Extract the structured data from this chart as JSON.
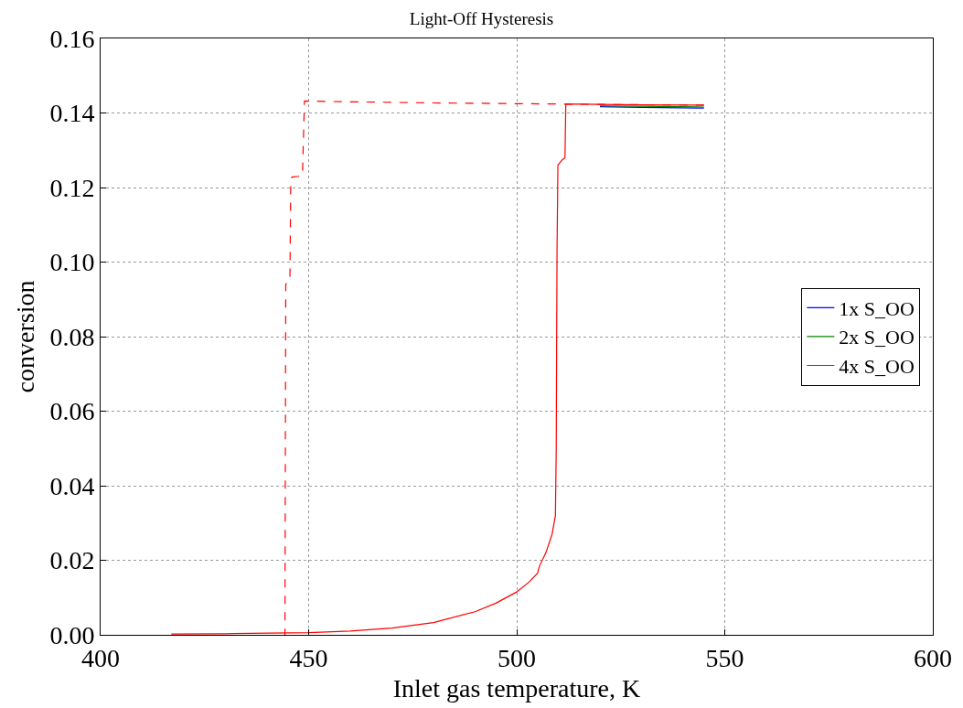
{
  "chart_data": {
    "type": "line",
    "title": "Light-Off Hysteresis",
    "xlabel": "Inlet gas temperature, K",
    "ylabel": "conversion",
    "xlim": [
      400,
      600
    ],
    "xticks": [
      400,
      450,
      500,
      550,
      600
    ],
    "ylim": [
      0,
      0.16
    ],
    "yticks": [
      {
        "value": 0,
        "label": "0.00"
      },
      {
        "value": 0.02,
        "label": "0.02"
      },
      {
        "value": 0.04,
        "label": "0.04"
      },
      {
        "value": 0.06,
        "label": "0.06"
      },
      {
        "value": 0.08,
        "label": "0.08"
      },
      {
        "value": 0.1,
        "label": "0.10"
      },
      {
        "value": 0.12,
        "label": "0.12"
      },
      {
        "value": 0.14,
        "label": "0.14"
      },
      {
        "value": 0.16,
        "label": "0.16"
      }
    ],
    "grid": true,
    "legend": "right",
    "marker": "none",
    "series": [
      {
        "name": "1x S_OO",
        "color": "#0000ff",
        "line_style": "solid",
        "x": [
          520,
          530,
          545
        ],
        "values": [
          0.1417,
          0.1415,
          0.1413
        ]
      },
      {
        "name": "2x S_OO",
        "color": "#008000",
        "line_style": "solid",
        "x": [
          520,
          530,
          545
        ],
        "values": [
          0.1419,
          0.1418,
          0.1416
        ]
      },
      {
        "name": "4x S_OO",
        "color": "#ff0000",
        "line_style": "solid",
        "x": [
          417,
          430,
          450,
          460,
          470,
          480,
          490,
          495,
          500,
          503,
          505,
          505.5,
          507,
          508.5,
          509.3,
          509.5,
          509.6,
          509.7,
          509.9,
          511,
          511.6,
          511.8,
          520,
          530,
          545
        ],
        "values": [
          0.0002,
          0.0003,
          0.0006,
          0.001,
          0.0018,
          0.0033,
          0.0062,
          0.0085,
          0.0115,
          0.0142,
          0.0165,
          0.0185,
          0.022,
          0.027,
          0.032,
          0.05,
          0.08,
          0.104,
          0.126,
          0.1275,
          0.128,
          0.1424,
          0.1423,
          0.1422,
          0.1421
        ]
      },
      {
        "color": "#ff0000",
        "line_style": "dashed",
        "x": [
          545,
          520,
          500,
          480,
          460,
          449,
          448.5,
          447.5,
          446,
          445.7,
          445.5,
          444.8,
          444.5,
          444.3
        ],
        "values": [
          0.1421,
          0.1423,
          0.1425,
          0.1427,
          0.143,
          0.1432,
          0.1232,
          0.123,
          0.1228,
          0.122,
          0.095,
          0.0945,
          0.094,
          0.0
        ]
      }
    ]
  }
}
